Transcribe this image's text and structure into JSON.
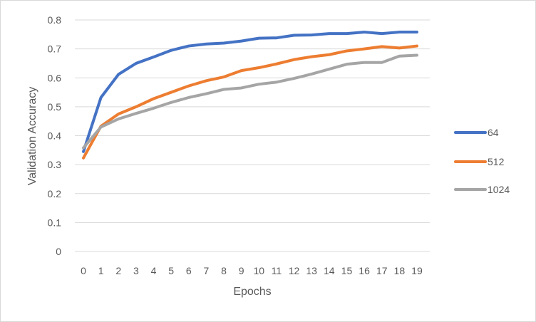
{
  "chart_data": {
    "type": "line",
    "title": "",
    "xlabel": "Epochs",
    "ylabel": "Validation Accuracy",
    "x": [
      0,
      1,
      2,
      3,
      4,
      5,
      6,
      7,
      8,
      9,
      10,
      11,
      12,
      13,
      14,
      15,
      16,
      17,
      18,
      19
    ],
    "ylim": [
      0,
      0.8
    ],
    "yticks": [
      0,
      0.1,
      0.2,
      0.3,
      0.4,
      0.5,
      0.6,
      0.7,
      0.8
    ],
    "ytick_labels": [
      "0",
      "0.1",
      "0.2",
      "0.3",
      "0.4",
      "0.5",
      "0.6",
      "0.7",
      "0.8"
    ],
    "grid": true,
    "legend_position": "right",
    "series": [
      {
        "name": "64",
        "color": "#4472C4",
        "values": [
          0.345,
          0.532,
          0.612,
          0.65,
          0.672,
          0.695,
          0.71,
          0.717,
          0.72,
          0.727,
          0.737,
          0.738,
          0.747,
          0.748,
          0.753,
          0.753,
          0.758,
          0.753,
          0.758,
          0.758
        ]
      },
      {
        "name": "512",
        "color": "#ED7D31",
        "values": [
          0.323,
          0.433,
          0.475,
          0.5,
          0.528,
          0.55,
          0.572,
          0.59,
          0.603,
          0.625,
          0.635,
          0.648,
          0.663,
          0.673,
          0.68,
          0.693,
          0.7,
          0.708,
          0.703,
          0.71
        ]
      },
      {
        "name": "1024",
        "color": "#A5A5A5",
        "values": [
          0.358,
          0.43,
          0.458,
          0.477,
          0.495,
          0.515,
          0.532,
          0.545,
          0.56,
          0.565,
          0.578,
          0.585,
          0.598,
          0.613,
          0.63,
          0.647,
          0.653,
          0.653,
          0.675,
          0.678
        ]
      }
    ]
  }
}
